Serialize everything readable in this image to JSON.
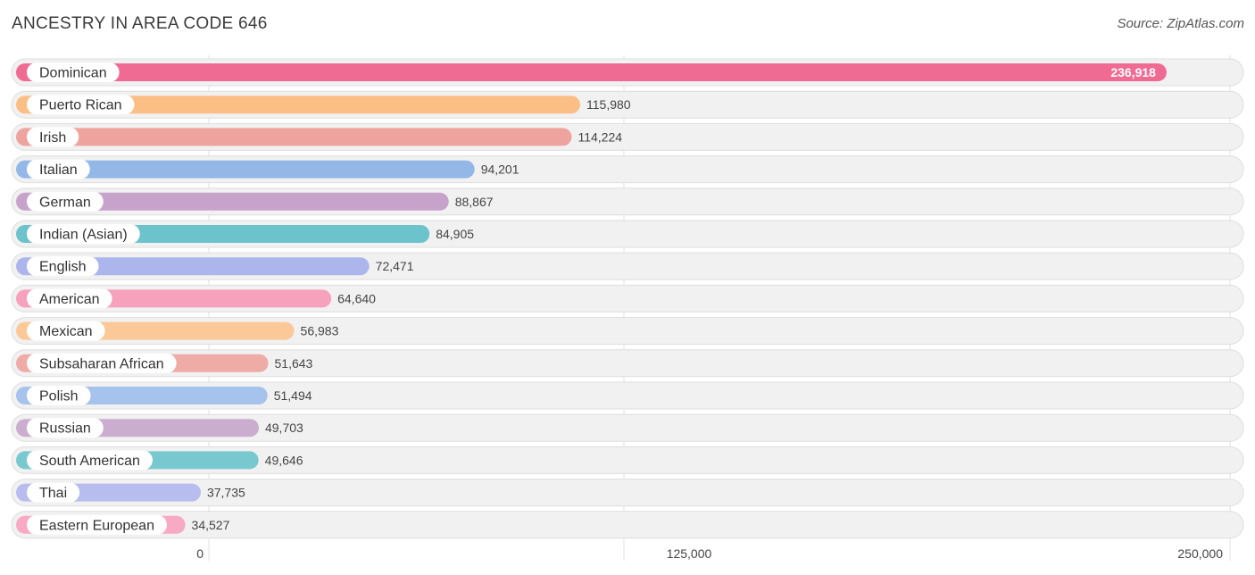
{
  "header": {
    "title": "ANCESTRY IN AREA CODE 646",
    "source": "Source: ZipAtlas.com"
  },
  "chart_data": {
    "type": "bar",
    "orientation": "horizontal",
    "title": "ANCESTRY IN AREA CODE 646",
    "xlabel": "",
    "ylabel": "",
    "xlim": [
      0,
      250000
    ],
    "ticks": [
      0,
      125000,
      250000
    ],
    "tick_labels": [
      "0",
      "125,000",
      "250,000"
    ],
    "categories": [
      "Dominican",
      "Puerto Rican",
      "Irish",
      "Italian",
      "German",
      "Indian (Asian)",
      "English",
      "American",
      "Mexican",
      "Subsaharan African",
      "Polish",
      "Russian",
      "South American",
      "Thai",
      "Eastern European"
    ],
    "values": [
      236918,
      115980,
      114224,
      94201,
      88867,
      84905,
      72471,
      64640,
      56983,
      51643,
      51494,
      49703,
      49646,
      37735,
      34527
    ],
    "value_labels": [
      "236,918",
      "115,980",
      "114,224",
      "94,201",
      "88,867",
      "84,905",
      "72,471",
      "64,640",
      "56,983",
      "51,643",
      "51,494",
      "49,703",
      "49,646",
      "37,735",
      "34,527"
    ],
    "colors": [
      "#f06b93",
      "#fbbf85",
      "#eea39e",
      "#93b8e8",
      "#c7a3cc",
      "#6dc3cb",
      "#adb6ec",
      "#f7a2bc",
      "#fbc898",
      "#efaba5",
      "#a5c3ec",
      "#cbadcf",
      "#78c9cf",
      "#b7bdee",
      "#f8a9c3"
    ],
    "grid": true
  }
}
